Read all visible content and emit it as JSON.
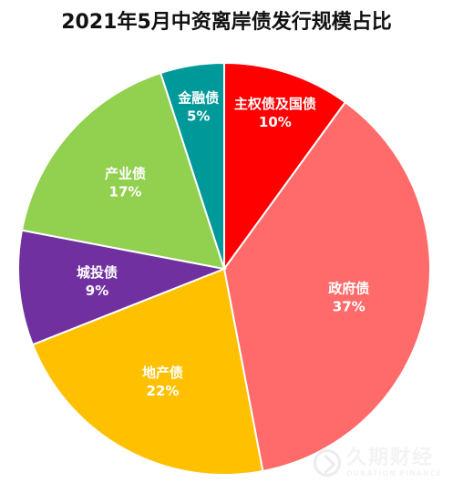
{
  "chart_data": {
    "type": "pie",
    "title": "2021年5月中资离岸债发行规模占比",
    "slices": [
      {
        "label": "主权债及国债",
        "value": 10,
        "display": "10%",
        "color": "#ff0000"
      },
      {
        "label": "政府债",
        "value": 37,
        "display": "37%",
        "color": "#ff6b6b"
      },
      {
        "label": "地产债",
        "value": 22,
        "display": "22%",
        "color": "#ffc000"
      },
      {
        "label": "城投债",
        "value": 9,
        "display": "9%",
        "color": "#7030a0"
      },
      {
        "label": "产业债",
        "value": 17,
        "display": "17%",
        "color": "#92d050"
      },
      {
        "label": "金融债",
        "value": 5,
        "display": "5%",
        "color": "#009999"
      }
    ],
    "start_angle_deg": 0,
    "direction": "clockwise"
  },
  "watermark": {
    "icon": "duration-finance-logo-icon",
    "text_cn": "久期财经",
    "text_en": "DURATION FINANCE"
  }
}
